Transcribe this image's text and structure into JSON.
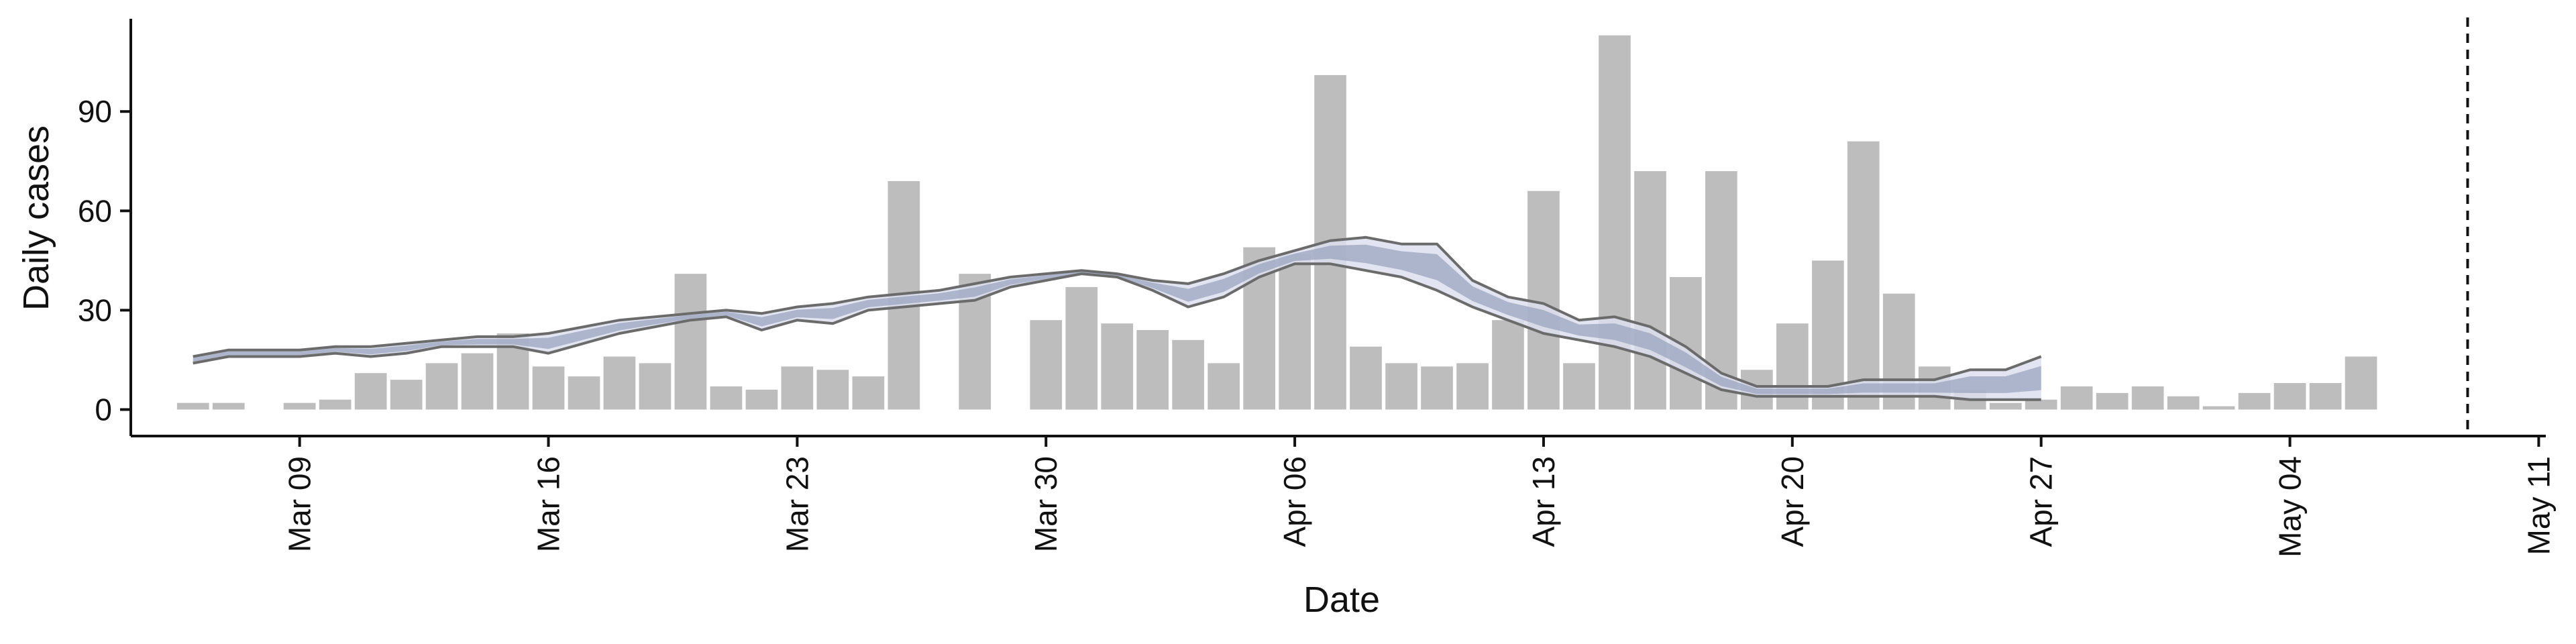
{
  "chart_data": {
    "type": "bar",
    "title": "",
    "xlabel": "Date",
    "ylabel": "Daily cases",
    "ylim": [
      -8,
      118
    ],
    "yticks": [
      0,
      30,
      60,
      90
    ],
    "x_start": "Mar 05",
    "xlim_days": [
      -0.75,
      67.2
    ],
    "xticks": [
      {
        "day": 4,
        "label": "Mar 09"
      },
      {
        "day": 11,
        "label": "Mar 16"
      },
      {
        "day": 18,
        "label": "Mar 23"
      },
      {
        "day": 25,
        "label": "Mar 30"
      },
      {
        "day": 32,
        "label": "Apr 06"
      },
      {
        "day": 39,
        "label": "Apr 13"
      },
      {
        "day": 46,
        "label": "Apr 20"
      },
      {
        "day": 53,
        "label": "Apr 27"
      },
      {
        "day": 60,
        "label": "May 04"
      },
      {
        "day": 67,
        "label": "May 11"
      }
    ],
    "vline_day": 65,
    "colors": {
      "bars": "#bdbdbd",
      "band": "#9aa4be",
      "band_light": "#dde1ee",
      "outline": "#6b6b6b",
      "axis": "#111111",
      "vline": "#111111"
    },
    "series": [
      {
        "name": "Daily cases",
        "type": "bar",
        "start_day": 0,
        "values": [
          0,
          2,
          2,
          0,
          2,
          3,
          11,
          9,
          14,
          17,
          23,
          13,
          10,
          16,
          14,
          41,
          7,
          6,
          13,
          12,
          10,
          69,
          0,
          41,
          0,
          27,
          37,
          26,
          24,
          21,
          14,
          49,
          47,
          101,
          19,
          14,
          13,
          14,
          27,
          66,
          14,
          113,
          72,
          40,
          72,
          12,
          26,
          45,
          81,
          35,
          13,
          6,
          2,
          3,
          7,
          5,
          7,
          4,
          1,
          5,
          8,
          8,
          16
        ]
      },
      {
        "name": "Estimate upper",
        "type": "line",
        "start_day": 1,
        "values": [
          16,
          18,
          18,
          18,
          19,
          19,
          20,
          21,
          22,
          22,
          23,
          25,
          27,
          28,
          29,
          30,
          29,
          31,
          32,
          34,
          35,
          36,
          38,
          40,
          41,
          42,
          41,
          39,
          38,
          41,
          45,
          48,
          51,
          52,
          50,
          50,
          39,
          34,
          32,
          27,
          28,
          25,
          19,
          11,
          7,
          7,
          7,
          9,
          9,
          9,
          12,
          12,
          16
        ]
      },
      {
        "name": "Estimate lower",
        "type": "line",
        "start_day": 1,
        "values": [
          14,
          16,
          16,
          16,
          17,
          16,
          17,
          19,
          19,
          19,
          17,
          20,
          23,
          25,
          27,
          28,
          24,
          27,
          26,
          30,
          31,
          32,
          33,
          37,
          39,
          41,
          40,
          36,
          31,
          34,
          40,
          44,
          44,
          42,
          40,
          36,
          31,
          27,
          23,
          21,
          19,
          16,
          11,
          6,
          4,
          4,
          4,
          4,
          4,
          4,
          3,
          3,
          3
        ]
      }
    ]
  }
}
